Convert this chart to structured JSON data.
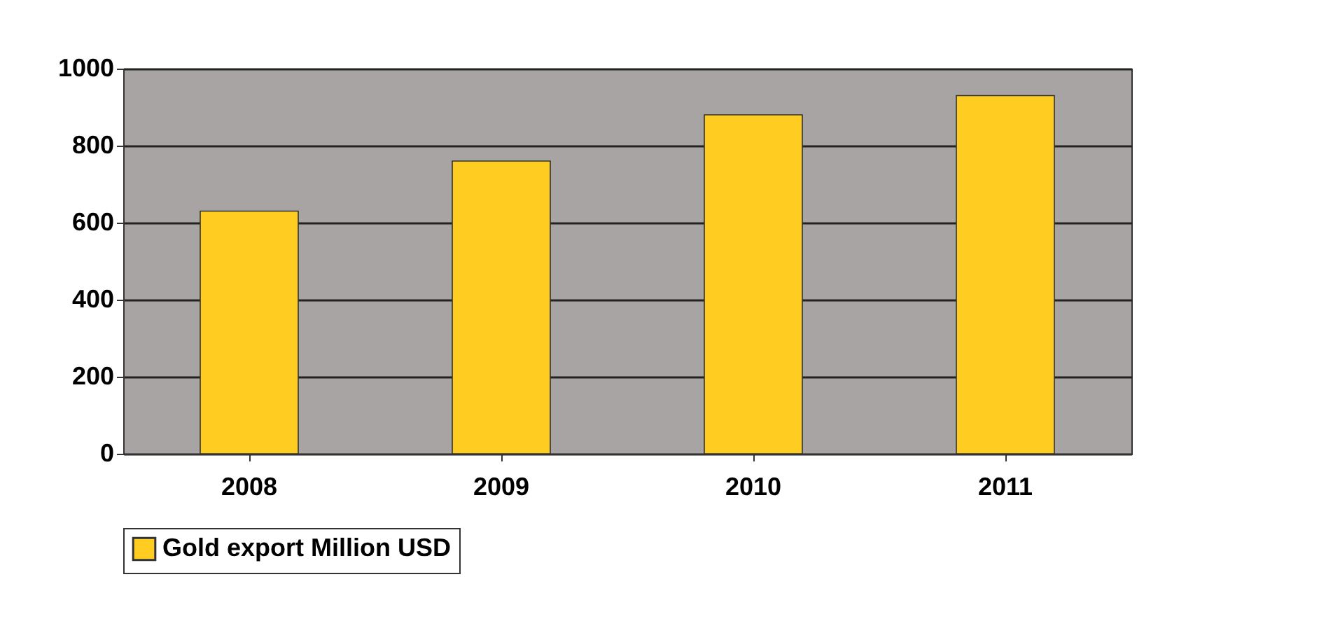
{
  "chart_data": {
    "type": "bar",
    "categories": [
      "2008",
      "2009",
      "2010",
      "2011"
    ],
    "series": [
      {
        "name": "Gold export Million USD",
        "color": "#ffcc22",
        "values": [
          630,
          760,
          880,
          930
        ]
      }
    ],
    "ylim": [
      0,
      1000
    ],
    "yticks": [
      0,
      200,
      400,
      600,
      800,
      1000
    ],
    "grid": "y",
    "legend": "bottom"
  }
}
